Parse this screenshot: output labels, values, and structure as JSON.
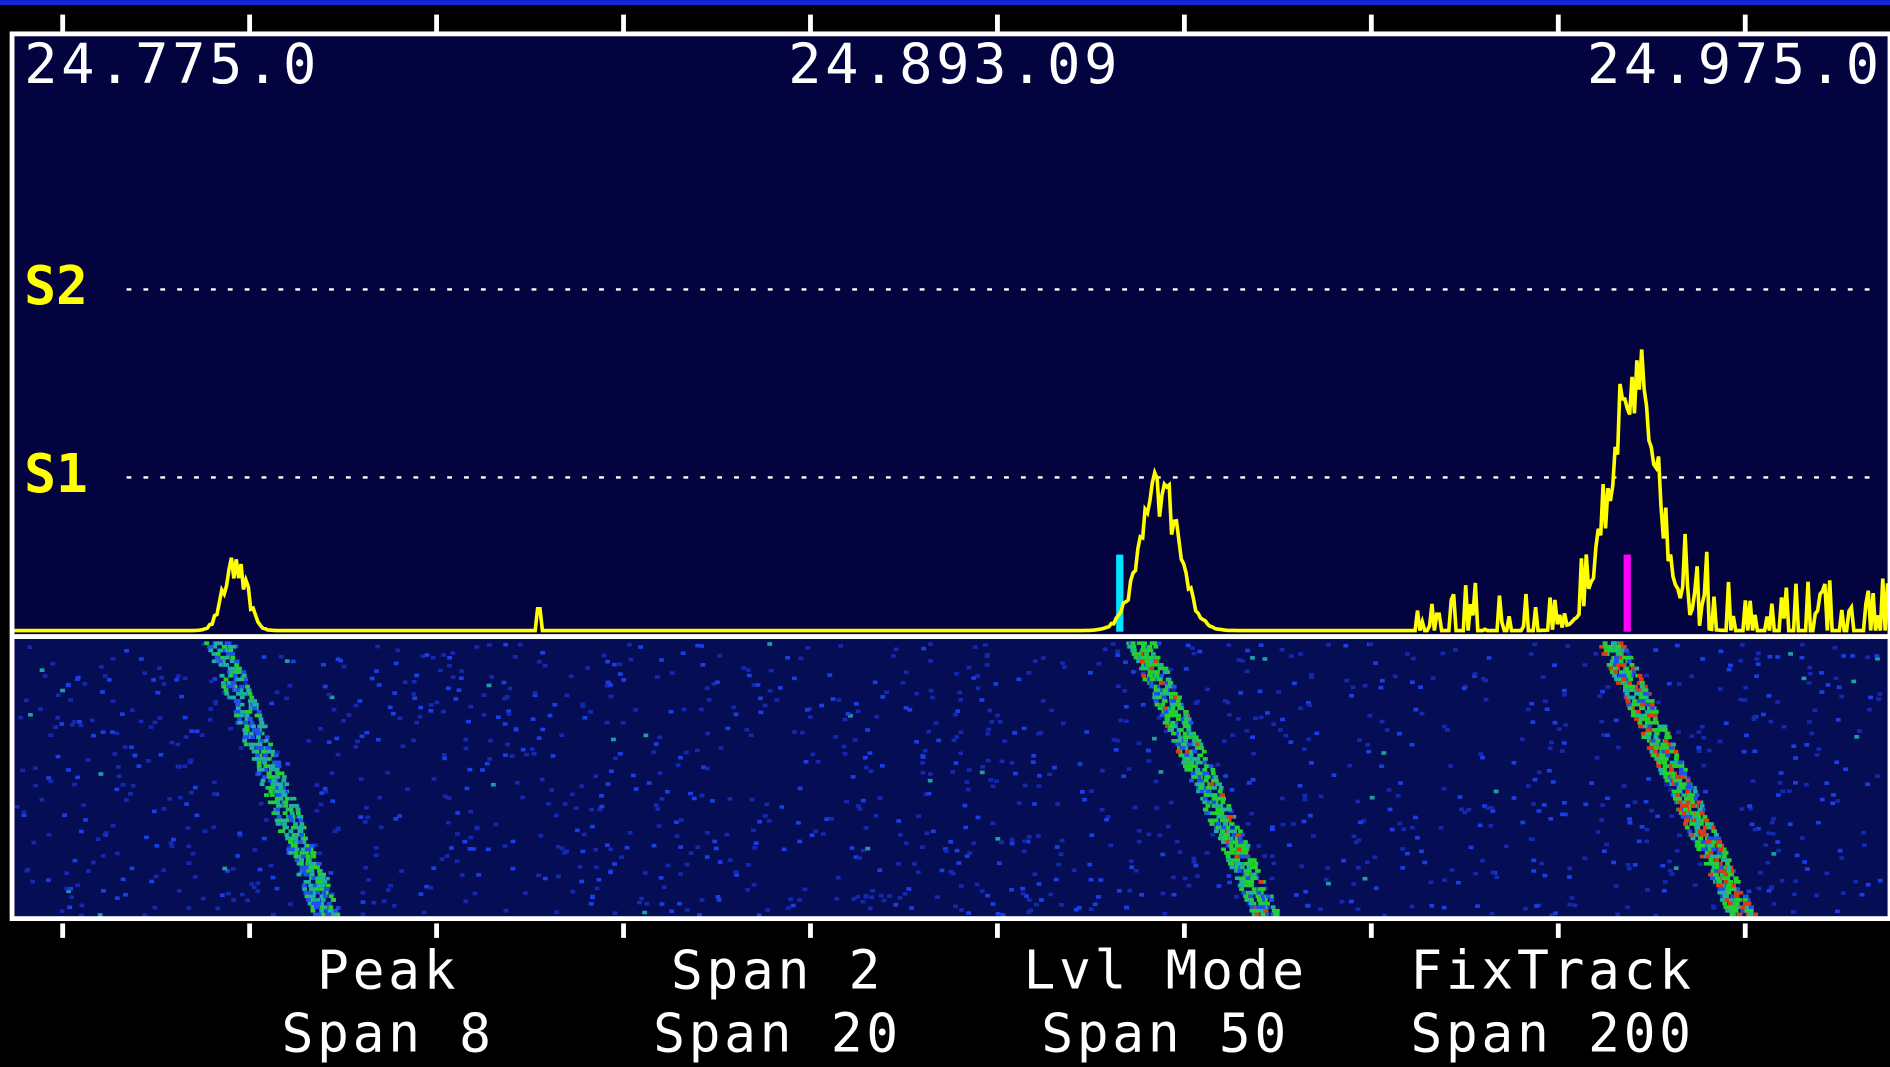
{
  "frequency_labels": {
    "left": "24.775.0",
    "center": "24.893.09",
    "right": "24.975.0"
  },
  "level_labels": [
    "S2",
    "S1"
  ],
  "softkeys": [
    {
      "top": "Peak",
      "bottom": "Span 8"
    },
    {
      "top": "Span 2",
      "bottom": "Span 20"
    },
    {
      "top": "Lvl Mode",
      "bottom": "Span 50"
    },
    {
      "top": "FixTrack",
      "bottom": "Span 200"
    }
  ]
}
